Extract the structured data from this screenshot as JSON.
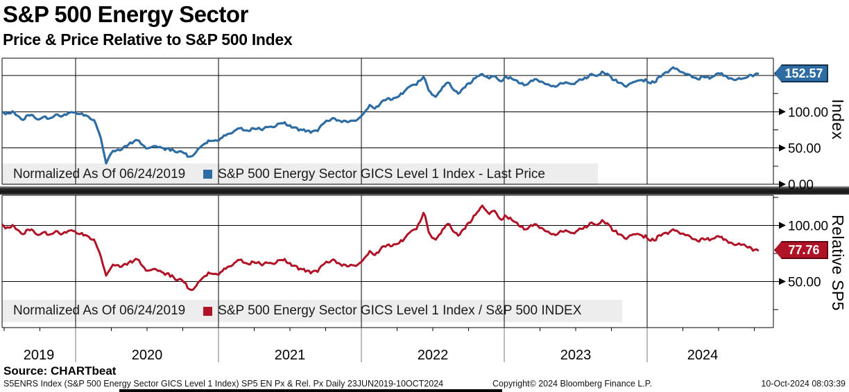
{
  "header": {
    "title": "S&P 500 Energy Sector",
    "subtitle": "Price & Price Relative to S&P 500 Index"
  },
  "source_label": "Source: CHARTbeat",
  "footer": {
    "left": "S5ENRS Index (S&P 500 Energy Sector GICS Level 1 Index) SP5 EN Px & Rel. Px  Daily 23JUN2019-10OCT2024",
    "center": "Copyright© 2024 Bloomberg Finance L.P.",
    "right": "10-Oct-2024 08:03:39"
  },
  "colors": {
    "price_line": "#2e6da4",
    "relative_line": "#b01226",
    "legend_background": "#ededed",
    "grid": "#000000",
    "year_divider": "#777777"
  },
  "x_axis": {
    "year_labels": [
      "2019",
      "2020",
      "2021",
      "2022",
      "2023",
      "2024"
    ],
    "date_range": "23JUN2019-10OCT2024",
    "minor_tick_interval": "quarterly"
  },
  "chart_data": [
    {
      "type": "line",
      "panel": "top",
      "name": "price",
      "legend": {
        "normalized": "Normalized As Of 06/24/2019",
        "series": "S&P 500 Energy Sector GICS Level 1 Index - Last Price"
      },
      "ylabel": "Index",
      "yticks_major": [
        0,
        50,
        100
      ],
      "yticks_minor": [
        25,
        75,
        125,
        150
      ],
      "gridlines": [
        50,
        100,
        150
      ],
      "ylim": [
        0,
        173.8
      ],
      "last_price": 152.57,
      "last_price_label": "152.57",
      "color": "#2e6da4",
      "points": [
        [
          2019.48,
          100
        ],
        [
          2019.52,
          98.5
        ],
        [
          2019.56,
          99.5
        ],
        [
          2019.6,
          93
        ],
        [
          2019.63,
          88.5
        ],
        [
          2019.66,
          93
        ],
        [
          2019.7,
          95.5
        ],
        [
          2019.74,
          90
        ],
        [
          2019.78,
          92.5
        ],
        [
          2019.82,
          91
        ],
        [
          2019.86,
          95
        ],
        [
          2019.9,
          93.5
        ],
        [
          2019.94,
          97
        ],
        [
          2019.98,
          99.5
        ],
        [
          2020.02,
          99
        ],
        [
          2020.06,
          96
        ],
        [
          2020.1,
          93
        ],
        [
          2020.14,
          85
        ],
        [
          2020.18,
          60
        ],
        [
          2020.215,
          28
        ],
        [
          2020.24,
          42
        ],
        [
          2020.27,
          46
        ],
        [
          2020.31,
          48
        ],
        [
          2020.35,
          52
        ],
        [
          2020.4,
          58
        ],
        [
          2020.435,
          61
        ],
        [
          2020.46,
          53
        ],
        [
          2020.5,
          50
        ],
        [
          2020.54,
          51.5
        ],
        [
          2020.58,
          53
        ],
        [
          2020.62,
          50
        ],
        [
          2020.66,
          47
        ],
        [
          2020.7,
          45
        ],
        [
          2020.74,
          44
        ],
        [
          2020.78,
          40
        ],
        [
          2020.81,
          38
        ],
        [
          2020.85,
          46
        ],
        [
          2020.89,
          55
        ],
        [
          2020.93,
          59
        ],
        [
          2020.97,
          58
        ],
        [
          2021.02,
          63
        ],
        [
          2021.06,
          68
        ],
        [
          2021.1,
          73
        ],
        [
          2021.14,
          78
        ],
        [
          2021.18,
          76
        ],
        [
          2021.22,
          74
        ],
        [
          2021.27,
          77
        ],
        [
          2021.31,
          75
        ],
        [
          2021.35,
          79
        ],
        [
          2021.4,
          82
        ],
        [
          2021.44,
          84
        ],
        [
          2021.48,
          83
        ],
        [
          2021.52,
          77
        ],
        [
          2021.56,
          74
        ],
        [
          2021.6,
          76
        ],
        [
          2021.64,
          72
        ],
        [
          2021.68,
          74
        ],
        [
          2021.73,
          82
        ],
        [
          2021.77,
          88
        ],
        [
          2021.81,
          90
        ],
        [
          2021.85,
          86
        ],
        [
          2021.89,
          89
        ],
        [
          2021.93,
          86
        ],
        [
          2021.97,
          90
        ],
        [
          2022.02,
          98
        ],
        [
          2022.06,
          108
        ],
        [
          2022.1,
          105
        ],
        [
          2022.14,
          112
        ],
        [
          2022.18,
          120
        ],
        [
          2022.22,
          116
        ],
        [
          2022.27,
          124
        ],
        [
          2022.31,
          128
        ],
        [
          2022.35,
          135
        ],
        [
          2022.4,
          141
        ],
        [
          2022.44,
          148
        ],
        [
          2022.48,
          128
        ],
        [
          2022.52,
          120
        ],
        [
          2022.56,
          131
        ],
        [
          2022.6,
          140
        ],
        [
          2022.64,
          131
        ],
        [
          2022.68,
          125
        ],
        [
          2022.73,
          136
        ],
        [
          2022.77,
          143
        ],
        [
          2022.81,
          148
        ],
        [
          2022.85,
          152
        ],
        [
          2022.89,
          146
        ],
        [
          2022.93,
          149
        ],
        [
          2022.97,
          144
        ],
        [
          2023.02,
          148
        ],
        [
          2023.06,
          146
        ],
        [
          2023.1,
          140
        ],
        [
          2023.14,
          136
        ],
        [
          2023.18,
          141
        ],
        [
          2023.22,
          145
        ],
        [
          2023.27,
          142
        ],
        [
          2023.31,
          136
        ],
        [
          2023.35,
          134
        ],
        [
          2023.4,
          137
        ],
        [
          2023.44,
          140
        ],
        [
          2023.48,
          138
        ],
        [
          2023.52,
          143
        ],
        [
          2023.56,
          147
        ],
        [
          2023.6,
          150
        ],
        [
          2023.64,
          149
        ],
        [
          2023.68,
          153
        ],
        [
          2023.73,
          150
        ],
        [
          2023.77,
          145
        ],
        [
          2023.81,
          140
        ],
        [
          2023.85,
          136
        ],
        [
          2023.89,
          139
        ],
        [
          2023.93,
          142
        ],
        [
          2023.97,
          143
        ],
        [
          2024.02,
          140
        ],
        [
          2024.06,
          144
        ],
        [
          2024.1,
          150
        ],
        [
          2024.14,
          156
        ],
        [
          2024.18,
          160
        ],
        [
          2024.22,
          156
        ],
        [
          2024.27,
          152
        ],
        [
          2024.31,
          149
        ],
        [
          2024.35,
          146
        ],
        [
          2024.4,
          149
        ],
        [
          2024.44,
          146
        ],
        [
          2024.48,
          150
        ],
        [
          2024.52,
          152
        ],
        [
          2024.56,
          147
        ],
        [
          2024.6,
          144
        ],
        [
          2024.64,
          147
        ],
        [
          2024.68,
          145
        ],
        [
          2024.71,
          149
        ],
        [
          2024.775,
          152.57
        ]
      ]
    },
    {
      "type": "line",
      "panel": "bottom",
      "name": "relative",
      "legend": {
        "normalized": "Normalized As Of 06/24/2019",
        "series": "S&P 500 Energy Sector GICS Level 1 Index / S&P 500 INDEX"
      },
      "ylabel": "Relative SP5",
      "yticks_major": [
        50,
        100
      ],
      "yticks_minor": [
        25,
        75,
        125
      ],
      "gridlines": [
        50,
        100
      ],
      "ylim": [
        8.6,
        126.7
      ],
      "last_price": 77.76,
      "last_price_label": "77.76",
      "color": "#b01226",
      "points": [
        [
          2019.48,
          101
        ],
        [
          2019.52,
          98.5
        ],
        [
          2019.56,
          99.5
        ],
        [
          2019.6,
          95
        ],
        [
          2019.63,
          92
        ],
        [
          2019.66,
          94.5
        ],
        [
          2019.7,
          96
        ],
        [
          2019.74,
          92
        ],
        [
          2019.78,
          93.5
        ],
        [
          2019.82,
          92
        ],
        [
          2019.86,
          94
        ],
        [
          2019.9,
          92
        ],
        [
          2019.94,
          94.5
        ],
        [
          2019.98,
          95.5
        ],
        [
          2020.02,
          94
        ],
        [
          2020.06,
          92
        ],
        [
          2020.1,
          90
        ],
        [
          2020.14,
          85
        ],
        [
          2020.18,
          70
        ],
        [
          2020.215,
          55
        ],
        [
          2020.24,
          62
        ],
        [
          2020.27,
          65
        ],
        [
          2020.31,
          64
        ],
        [
          2020.35,
          65
        ],
        [
          2020.4,
          68
        ],
        [
          2020.435,
          70
        ],
        [
          2020.46,
          63
        ],
        [
          2020.5,
          60
        ],
        [
          2020.54,
          60.5
        ],
        [
          2020.58,
          61
        ],
        [
          2020.62,
          58
        ],
        [
          2020.66,
          55
        ],
        [
          2020.7,
          52
        ],
        [
          2020.74,
          51
        ],
        [
          2020.78,
          46
        ],
        [
          2020.81,
          42
        ],
        [
          2020.85,
          47
        ],
        [
          2020.89,
          54
        ],
        [
          2020.93,
          57
        ],
        [
          2020.97,
          55
        ],
        [
          2021.02,
          58
        ],
        [
          2021.06,
          62
        ],
        [
          2021.1,
          66
        ],
        [
          2021.14,
          70
        ],
        [
          2021.18,
          68
        ],
        [
          2021.22,
          65.5
        ],
        [
          2021.27,
          67
        ],
        [
          2021.31,
          64.5
        ],
        [
          2021.35,
          66.5
        ],
        [
          2021.4,
          68
        ],
        [
          2021.44,
          69
        ],
        [
          2021.48,
          68
        ],
        [
          2021.52,
          63
        ],
        [
          2021.56,
          60.5
        ],
        [
          2021.6,
          61.5
        ],
        [
          2021.64,
          58
        ],
        [
          2021.68,
          59.5
        ],
        [
          2021.73,
          64
        ],
        [
          2021.77,
          67.5
        ],
        [
          2021.81,
          68.5
        ],
        [
          2021.85,
          64.5
        ],
        [
          2021.89,
          66
        ],
        [
          2021.93,
          63.5
        ],
        [
          2021.97,
          65.5
        ],
        [
          2022.02,
          70
        ],
        [
          2022.06,
          76
        ],
        [
          2022.1,
          74
        ],
        [
          2022.14,
          79
        ],
        [
          2022.18,
          84
        ],
        [
          2022.22,
          81
        ],
        [
          2022.27,
          86
        ],
        [
          2022.31,
          88
        ],
        [
          2022.35,
          94
        ],
        [
          2022.4,
          100
        ],
        [
          2022.44,
          112
        ],
        [
          2022.48,
          92
        ],
        [
          2022.52,
          87
        ],
        [
          2022.56,
          94
        ],
        [
          2022.6,
          101
        ],
        [
          2022.64,
          95
        ],
        [
          2022.68,
          91
        ],
        [
          2022.73,
          99
        ],
        [
          2022.77,
          106
        ],
        [
          2022.81,
          111
        ],
        [
          2022.85,
          118
        ],
        [
          2022.89,
          110
        ],
        [
          2022.93,
          113
        ],
        [
          2022.97,
          107
        ],
        [
          2023.02,
          108
        ],
        [
          2023.06,
          105
        ],
        [
          2023.1,
          100
        ],
        [
          2023.14,
          96
        ],
        [
          2023.18,
          99
        ],
        [
          2023.22,
          101
        ],
        [
          2023.27,
          98
        ],
        [
          2023.31,
          93
        ],
        [
          2023.35,
          91
        ],
        [
          2023.4,
          93
        ],
        [
          2023.44,
          95
        ],
        [
          2023.48,
          93
        ],
        [
          2023.52,
          96
        ],
        [
          2023.56,
          99
        ],
        [
          2023.6,
          101
        ],
        [
          2023.64,
          100
        ],
        [
          2023.68,
          103
        ],
        [
          2023.73,
          100
        ],
        [
          2023.77,
          96
        ],
        [
          2023.81,
          92
        ],
        [
          2023.85,
          89
        ],
        [
          2023.89,
          91
        ],
        [
          2023.93,
          92
        ],
        [
          2023.97,
          90
        ],
        [
          2024.02,
          87
        ],
        [
          2024.06,
          89
        ],
        [
          2024.1,
          92
        ],
        [
          2024.14,
          94
        ],
        [
          2024.18,
          95.5
        ],
        [
          2024.22,
          93
        ],
        [
          2024.27,
          91.5
        ],
        [
          2024.31,
          89
        ],
        [
          2024.35,
          87
        ],
        [
          2024.4,
          88.5
        ],
        [
          2024.44,
          87
        ],
        [
          2024.48,
          88.5
        ],
        [
          2024.52,
          89
        ],
        [
          2024.56,
          85.5
        ],
        [
          2024.6,
          83
        ],
        [
          2024.64,
          84.5
        ],
        [
          2024.68,
          82
        ],
        [
          2024.71,
          80
        ],
        [
          2024.775,
          77.76
        ]
      ]
    }
  ]
}
